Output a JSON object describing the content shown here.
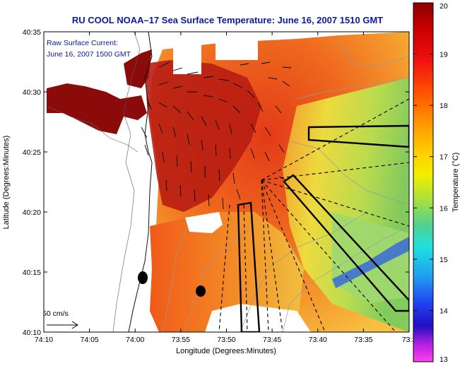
{
  "title": "RU COOL   NOAA–17  Sea Surface Temperature:  June 16, 2007 1510 GMT",
  "inset_label": {
    "line1": "Raw Surface Current:",
    "line2": "June 16, 2007 1500 GMT"
  },
  "scale_label": "50 cm/s",
  "xlabel": "Longitude (Degrees:Minutes)",
  "ylabel": "Latitude (Degrees:Minutes)",
  "x_ticks": [
    "74:10",
    "74:05",
    "74:00",
    "73:55",
    "73:50",
    "73:45",
    "73:40",
    "73:35",
    "73:3"
  ],
  "y_ticks": [
    "40:35",
    "40:30",
    "40:25",
    "40:20",
    "40:15",
    "40:10"
  ],
  "colorbar": {
    "label": "Temperature (°C)",
    "ticks": [
      "20",
      "19",
      "18",
      "17",
      "16",
      "15",
      "14",
      "13"
    ],
    "range": [
      13,
      20
    ]
  },
  "colors": {
    "title": "#0a1aa0",
    "land": "#ffffff",
    "hot": "#8b0b0b",
    "warm": "#e8401a",
    "orange": "#f08a20",
    "cool": "#7cd070",
    "cold": "#3050e0"
  }
}
